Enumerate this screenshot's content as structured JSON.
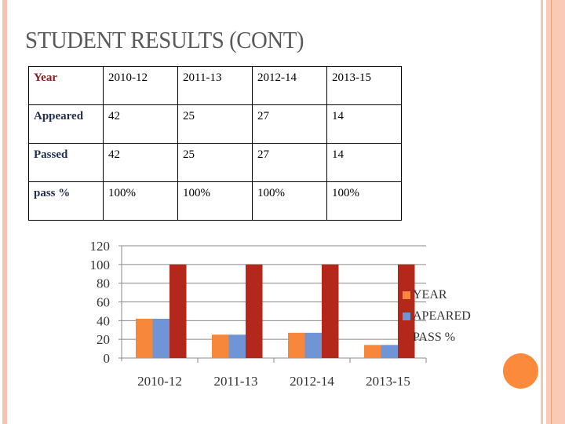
{
  "slide": {
    "title": "STUDENT RESULTS (CONT)",
    "colors": {
      "stripe": "#f7c4b0",
      "title_text": "#5a5a5a",
      "accent_circle": "#fb8a3c"
    }
  },
  "table": {
    "columns": [
      "Year",
      "2010-12",
      "2011-13",
      "2012-14",
      "2013-15"
    ],
    "rows": [
      {
        "label": "Appeared",
        "values": [
          "42",
          "25",
          "27",
          "14"
        ]
      },
      {
        "label": "Passed",
        "values": [
          "42",
          "25",
          "27",
          "14"
        ]
      },
      {
        "label": "pass %",
        "values": [
          "100%",
          "100%",
          "100%",
          "100%"
        ]
      }
    ]
  },
  "chart_data": {
    "type": "bar",
    "title": "",
    "xlabel": "",
    "ylabel": "",
    "categories": [
      "2010-12",
      "2011-13",
      "2012-14",
      "2013-15"
    ],
    "series": [
      {
        "name": "YEAR",
        "color": "#f7873a",
        "values": [
          42,
          25,
          27,
          14
        ]
      },
      {
        "name": "APEARED",
        "color": "#6f95d6",
        "values": [
          42,
          25,
          27,
          14
        ]
      },
      {
        "name": "PASS %",
        "color": "#b3281a",
        "values": [
          100,
          100,
          100,
          100
        ]
      }
    ],
    "ylim": [
      0,
      120
    ],
    "yticks": [
      0,
      20,
      40,
      60,
      80,
      100,
      120
    ],
    "grid": true,
    "legend_position": "right"
  }
}
